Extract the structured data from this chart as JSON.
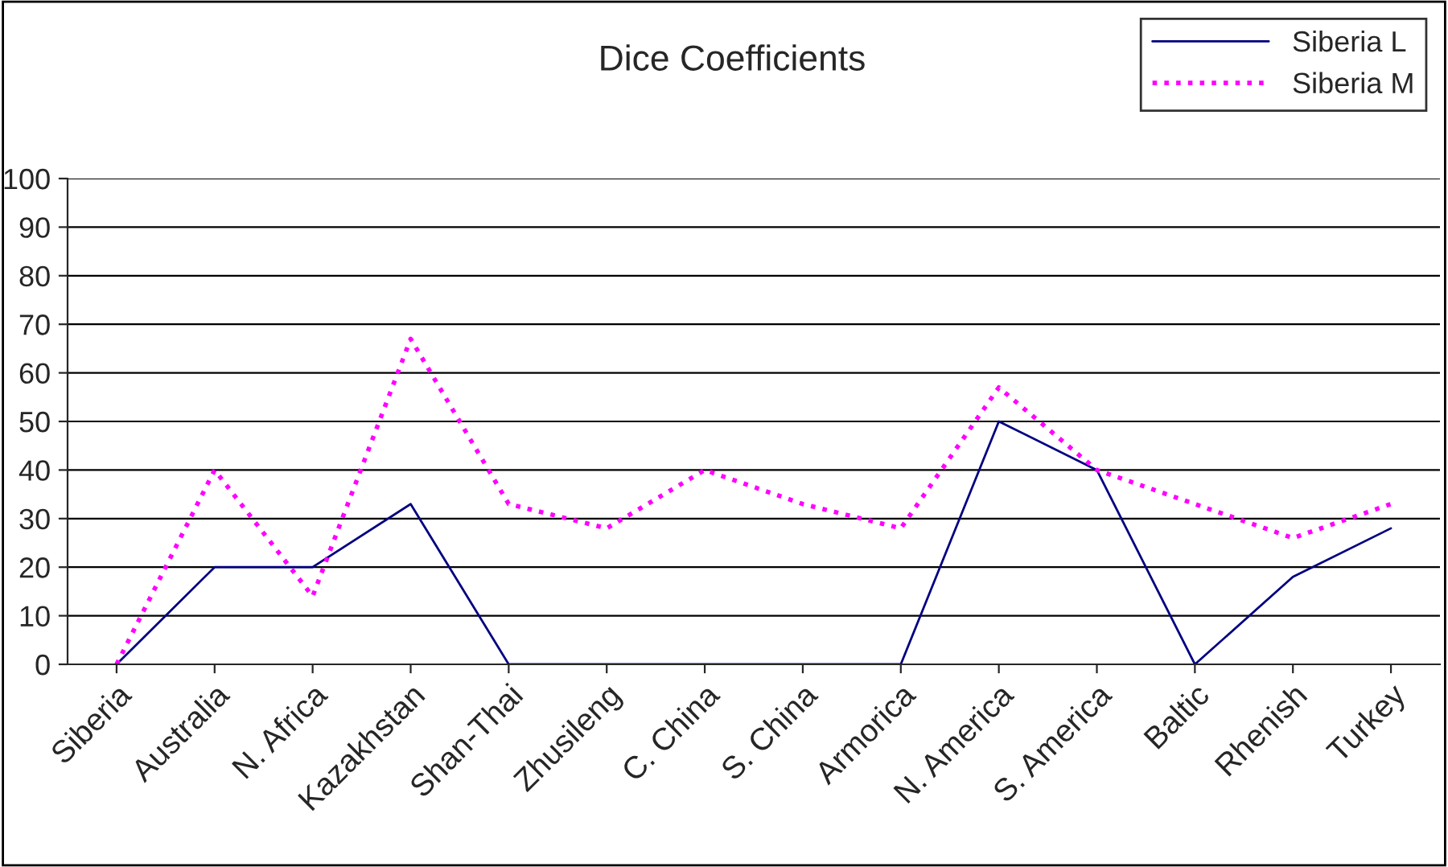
{
  "chart_data": {
    "type": "line",
    "title": "Dice Coefficients",
    "categories": [
      "Siberia",
      "Australia",
      "N. Africa",
      "Kazakhstan",
      "Shan-Thai",
      "Zhusileng",
      "C. China",
      "S. China",
      "Armorica",
      "N. America",
      "S. America",
      "Baltic",
      "Rhenish",
      "Turkey"
    ],
    "series": [
      {
        "name": "Siberia L",
        "color": "#000080",
        "line_style": "solid",
        "values": [
          0,
          20,
          20,
          33,
          0,
          0,
          0,
          0,
          0,
          50,
          40,
          0,
          18,
          28
        ]
      },
      {
        "name": "Siberia M",
        "color": "#ff00ff",
        "line_style": "dotted",
        "values": [
          0,
          40,
          14,
          67,
          33,
          28,
          40,
          33,
          28,
          57,
          40,
          33,
          26,
          33
        ]
      }
    ],
    "ylim": [
      0,
      100
    ],
    "yticks": [
      0,
      10,
      20,
      30,
      40,
      50,
      60,
      70,
      80,
      90,
      100
    ],
    "grid": "y",
    "legend": "top right",
    "marker": "none"
  }
}
